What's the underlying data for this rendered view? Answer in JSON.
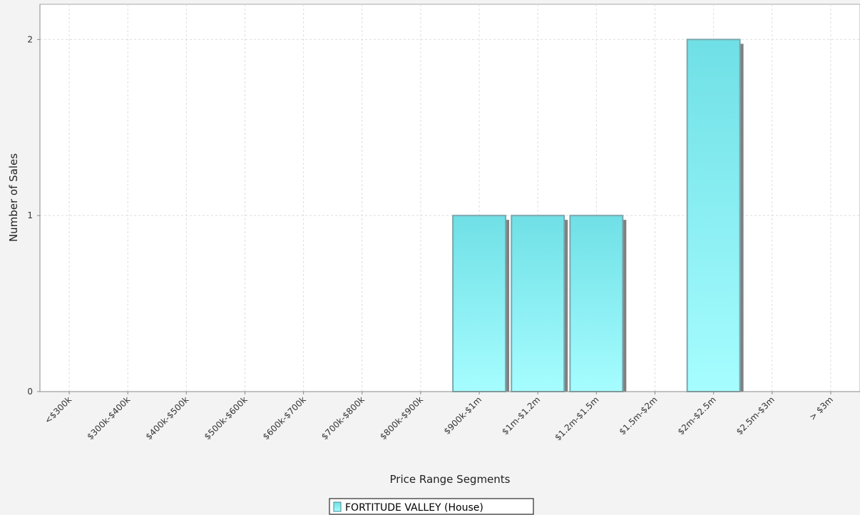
{
  "chart_data": {
    "type": "bar",
    "title": "",
    "xlabel": "Price Range Segments",
    "ylabel": "Number of Sales",
    "categories": [
      "<$300k",
      "$300k-$400k",
      "$400k-$500k",
      "$500k-$600k",
      "$600k-$700k",
      "$700k-$800k",
      "$800k-$900k",
      "$900k-$1m",
      "$1m-$1.2m",
      "$1.2m-$1.5m",
      "$1.5m-$2m",
      "$2m-$2.5m",
      "$2.5m-$3m",
      "> $3m"
    ],
    "series": [
      {
        "name": "FORTITUDE VALLEY (House)",
        "values": [
          0,
          0,
          0,
          0,
          0,
          0,
          0,
          1,
          1,
          1,
          0,
          2,
          0,
          0
        ]
      }
    ],
    "ylim": [
      0,
      2.2
    ],
    "yticks": [
      0,
      1,
      2
    ],
    "grid": true,
    "legend_position": "bottom-center",
    "colors": {
      "bar_top": "#6fe0e6",
      "bar_bottom": "#a6fdff",
      "bar_border": "#7aa7ad",
      "bar_shadow": "#808080",
      "grid": "#dddddd",
      "plot_background": "#ffffff",
      "page_background": "#f3f3f3"
    }
  }
}
